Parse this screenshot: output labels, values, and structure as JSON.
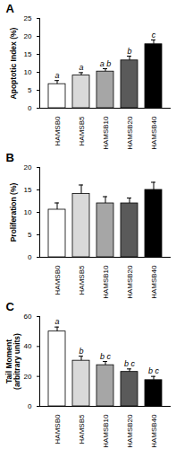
{
  "chart_data": [
    {
      "type": "bar",
      "title": "A",
      "y_label": "Apoptotic Index (%)",
      "categories": [
        "HAMSB0",
        "HAMSB5",
        "HAMSB10",
        "HAMSB20",
        "HAMSB40"
      ],
      "values": [
        6.7,
        9.1,
        10.2,
        13.3,
        17.8
      ],
      "error": [
        1.0,
        0.8,
        0.8,
        1.2,
        1.2
      ],
      "annotations": [
        "a",
        "a",
        "a b",
        "b",
        "c"
      ],
      "colors": [
        "#ffffff",
        "#d9d9d9",
        "#a6a6a6",
        "#5a5a5a",
        "#000000"
      ],
      "ylim": [
        0,
        25
      ],
      "yticks": [
        0,
        5,
        10,
        15,
        20,
        25
      ],
      "grid": false
    },
    {
      "type": "bar",
      "title": "B",
      "y_label": "Proliferation (%)",
      "categories": [
        "HAMSB0",
        "HAMSB5",
        "HAMSB10",
        "HAMSB20",
        "HAMSB40"
      ],
      "values": [
        10.6,
        14.1,
        12.0,
        12.0,
        15.0
      ],
      "error": [
        1.5,
        2.0,
        1.5,
        1.2,
        1.7
      ],
      "colors": [
        "#ffffff",
        "#d9d9d9",
        "#a6a6a6",
        "#5a5a5a",
        "#000000"
      ],
      "ylim": [
        0,
        20
      ],
      "yticks": [
        0,
        5,
        10,
        15,
        20
      ],
      "grid": false
    },
    {
      "type": "bar",
      "title": "C",
      "y_label": "Tail Moment\n(arbitrary units)",
      "categories": [
        "HAMSB0",
        "HAMSB5",
        "HAMSB10",
        "HAMSB20",
        "HAMSB40"
      ],
      "values": [
        50.0,
        30.5,
        27.5,
        23.0,
        17.5
      ],
      "error": [
        3.0,
        3.0,
        2.5,
        2.0,
        2.5
      ],
      "annotations": [
        "a",
        "b",
        "b c",
        "b c",
        "b c"
      ],
      "colors": [
        "#ffffff",
        "#d9d9d9",
        "#a6a6a6",
        "#5a5a5a",
        "#000000"
      ],
      "ylim": [
        0,
        60
      ],
      "yticks": [
        0,
        20,
        40,
        60
      ],
      "grid": false
    }
  ]
}
